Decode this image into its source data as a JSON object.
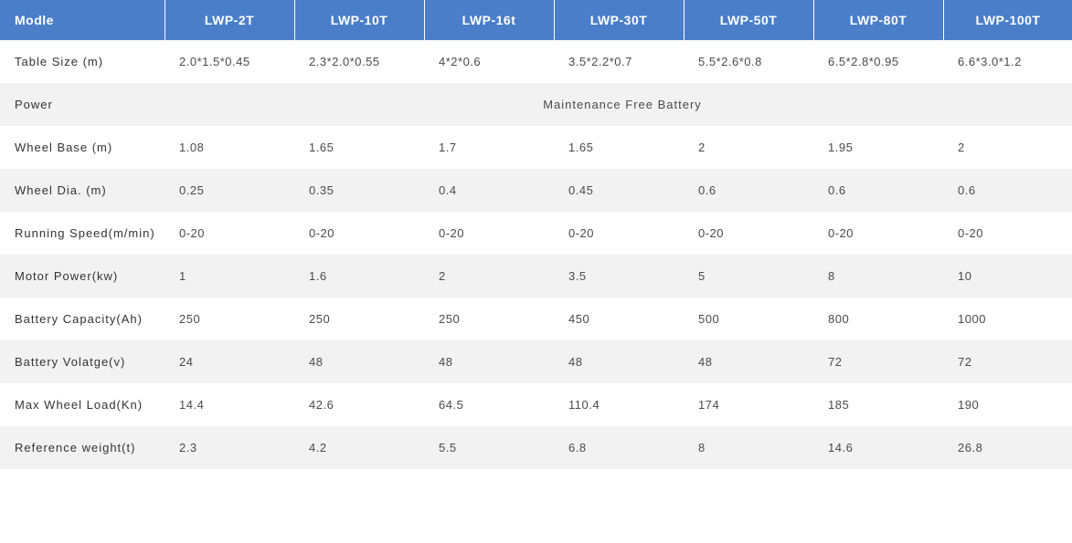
{
  "table": {
    "header_bg": "#4a7ec9",
    "header_fg": "#ffffff",
    "row_odd_bg": "#ffffff",
    "row_even_bg": "#f2f2f2",
    "text_color": "#4a4a4a",
    "columns": [
      "Modle",
      "LWP-2T",
      "LWP-10T",
      "LWP-16t",
      "LWP-30T",
      "LWP-50T",
      "LWP-80T",
      "LWP-100T"
    ],
    "rows": [
      {
        "label": "Table Size (m)",
        "values": [
          "2.0*1.5*0.45",
          "2.3*2.0*0.55",
          "4*2*0.6",
          "3.5*2.2*0.7",
          "5.5*2.6*0.8",
          "6.5*2.8*0.95",
          "6.6*3.0*1.2"
        ]
      },
      {
        "label": "Power",
        "spanned": "Maintenance Free Battery"
      },
      {
        "label": "Wheel Base (m)",
        "values": [
          "1.08",
          "1.65",
          "1.7",
          "1.65",
          "2",
          "1.95",
          "2"
        ]
      },
      {
        "label": "Wheel Dia. (m)",
        "values": [
          "0.25",
          "0.35",
          "0.4",
          "0.45",
          "0.6",
          "0.6",
          "0.6"
        ]
      },
      {
        "label": "Running Speed(m/min)",
        "values": [
          "0-20",
          "0-20",
          "0-20",
          "0-20",
          "0-20",
          "0-20",
          "0-20"
        ]
      },
      {
        "label": "Motor Power(kw)",
        "values": [
          "1",
          "1.6",
          "2",
          "3.5",
          "5",
          "8",
          "10"
        ]
      },
      {
        "label": "Battery Capacity(Ah)",
        "values": [
          "250",
          "250",
          "250",
          "450",
          "500",
          "800",
          "1000"
        ]
      },
      {
        "label": "Battery Volatge(v)",
        "values": [
          "24",
          "48",
          "48",
          "48",
          "48",
          "72",
          "72"
        ]
      },
      {
        "label": "Max Wheel Load(Kn)",
        "values": [
          "14.4",
          "42.6",
          "64.5",
          "110.4",
          "174",
          "185",
          "190"
        ]
      },
      {
        "label": "Reference weight(t)",
        "values": [
          "2.3",
          "4.2",
          "5.5",
          "6.8",
          "8",
          "14.6",
          "26.8"
        ]
      }
    ]
  }
}
